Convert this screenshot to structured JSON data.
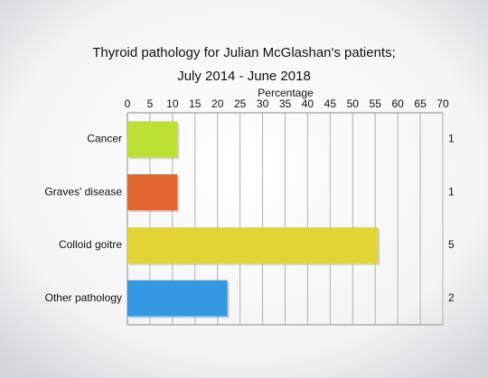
{
  "chart_data": {
    "type": "hbar",
    "title": [
      "Thyroid pathology for Julian McGlashan's patients;",
      "July 2014 - June 2018"
    ],
    "x_label": "Percentage",
    "categories": [
      "Cancer",
      "Graves' disease",
      "Colloid goitre",
      "Other pathology"
    ],
    "values": [
      11.1,
      11.1,
      55.6,
      22.2
    ],
    "colors": [
      "#bde035",
      "#e2652f",
      "#e2d435",
      "#3399e0"
    ],
    "counts": [
      "1",
      "1",
      "5",
      "2"
    ],
    "xlim": [
      0,
      70
    ],
    "xticks": [
      0,
      5,
      10,
      15,
      20,
      25,
      30,
      35,
      40,
      45,
      50,
      55,
      60,
      65,
      70
    ],
    "grid": true
  }
}
